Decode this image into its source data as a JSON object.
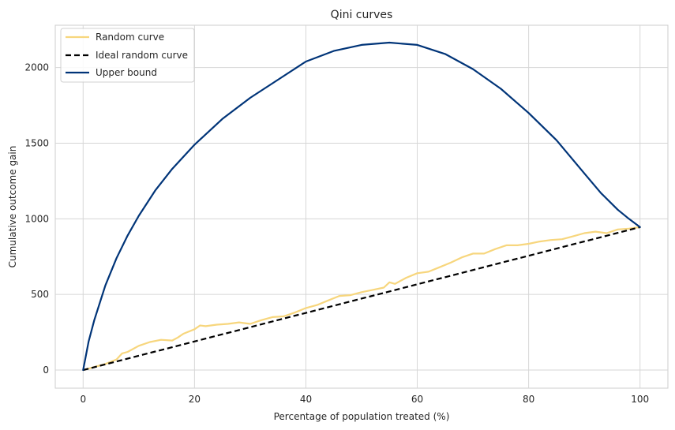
{
  "chart_data": {
    "type": "line",
    "title": "Qini curves",
    "xlabel": "Percentage of population treated (%)",
    "ylabel": "Cumulative outcome gain",
    "xlim": [
      -5,
      105
    ],
    "ylim": [
      -120,
      2280
    ],
    "xticks": [
      0,
      20,
      40,
      60,
      80,
      100
    ],
    "yticks": [
      0,
      500,
      1000,
      1500,
      2000
    ],
    "grid": true,
    "legend_position": "top-left",
    "series": [
      {
        "name": "Random curve",
        "color": "#f7d67d",
        "style": "solid",
        "x": [
          0,
          2,
          4,
          6,
          7,
          8,
          10,
          12,
          14,
          16,
          17,
          18,
          20,
          21,
          22,
          24,
          26,
          28,
          30,
          32,
          34,
          36,
          38,
          40,
          42,
          44,
          46,
          48,
          50,
          52,
          54,
          55,
          56,
          58,
          60,
          62,
          64,
          66,
          68,
          70,
          72,
          74,
          76,
          78,
          80,
          82,
          84,
          86,
          88,
          90,
          92,
          94,
          96,
          98,
          100
        ],
        "y": [
          0,
          20,
          40,
          70,
          110,
          120,
          160,
          185,
          200,
          195,
          215,
          240,
          270,
          295,
          290,
          300,
          305,
          315,
          305,
          330,
          350,
          355,
          380,
          410,
          430,
          460,
          490,
          495,
          515,
          530,
          545,
          580,
          570,
          610,
          640,
          650,
          680,
          710,
          745,
          770,
          770,
          800,
          825,
          825,
          835,
          850,
          860,
          865,
          885,
          905,
          915,
          905,
          930,
          935,
          945
        ]
      },
      {
        "name": "Ideal random curve",
        "color": "#000000",
        "style": "dashed",
        "x": [
          0,
          100
        ],
        "y": [
          0,
          945
        ]
      },
      {
        "name": "Upper bound",
        "color": "#003478",
        "style": "solid",
        "x": [
          0,
          1,
          2,
          4,
          6,
          8,
          10,
          13,
          16,
          20,
          25,
          30,
          35,
          40,
          45,
          50,
          55,
          60,
          65,
          70,
          75,
          80,
          85,
          90,
          93,
          96,
          98,
          100
        ],
        "y": [
          0,
          190,
          330,
          560,
          740,
          890,
          1020,
          1190,
          1330,
          1490,
          1660,
          1800,
          1920,
          2040,
          2110,
          2150,
          2165,
          2150,
          2090,
          1990,
          1860,
          1700,
          1520,
          1300,
          1170,
          1060,
          1000,
          945
        ]
      }
    ]
  }
}
